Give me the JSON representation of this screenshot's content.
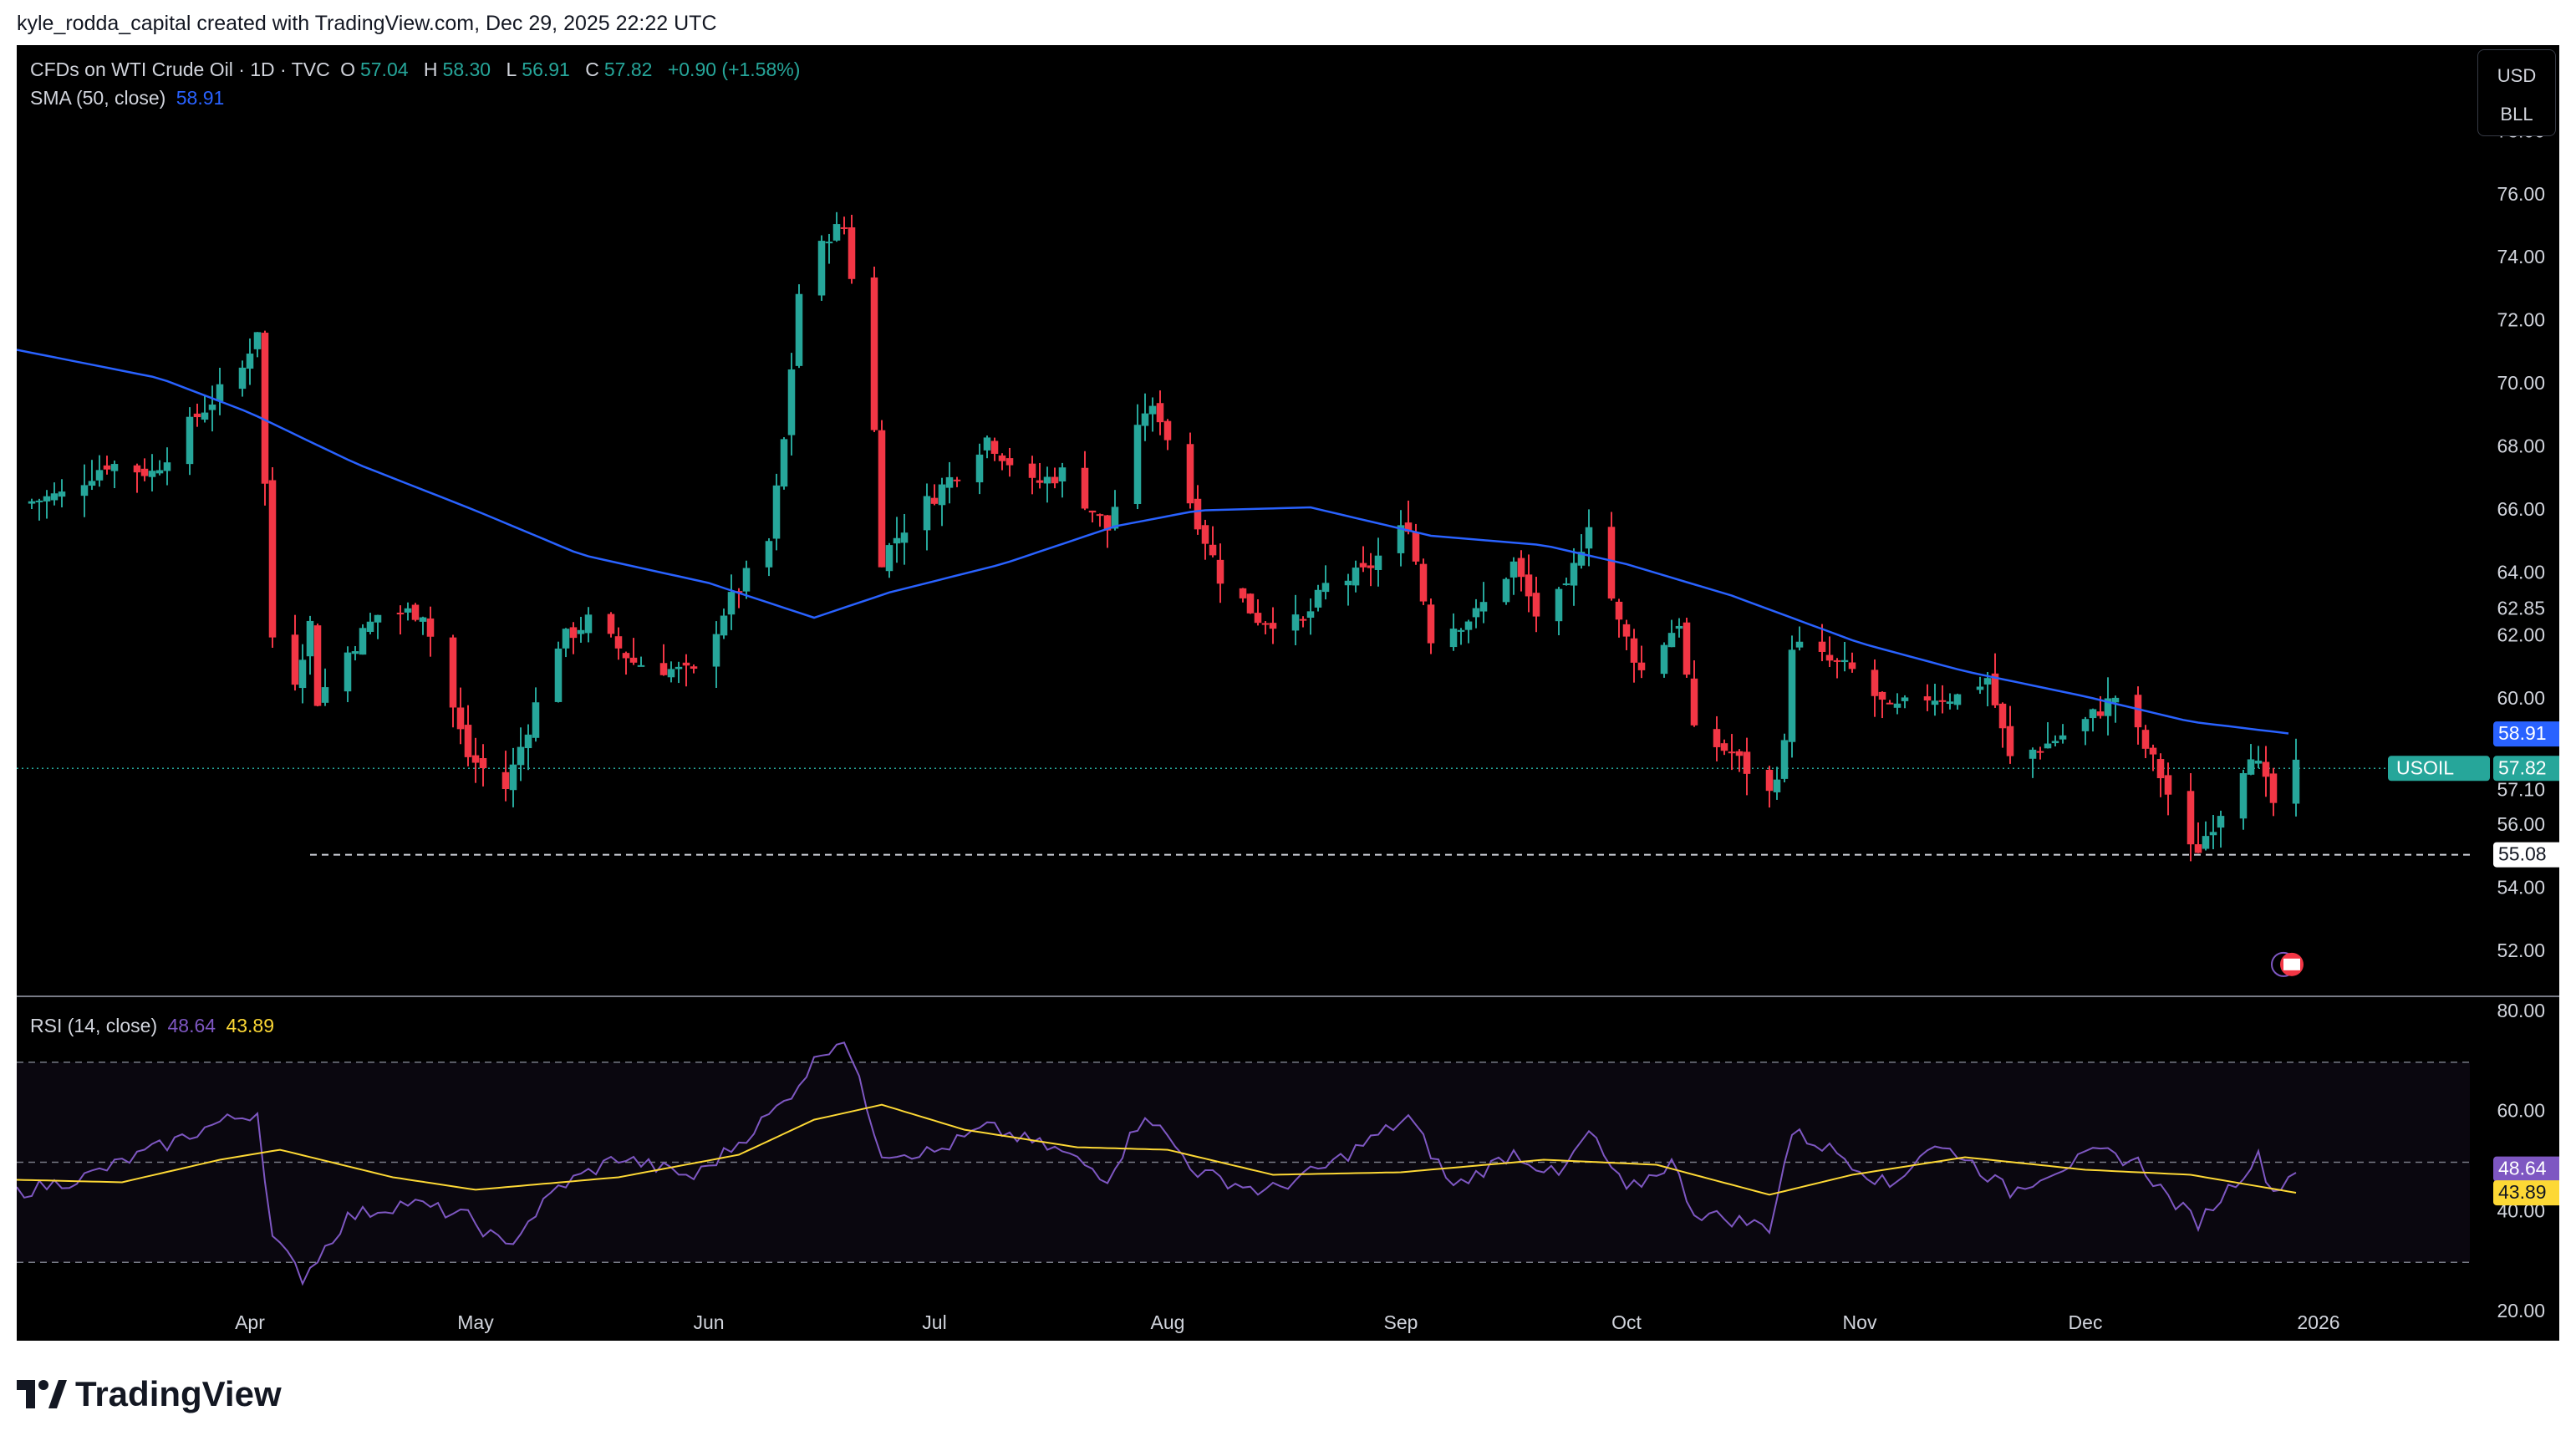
{
  "credit": "kyle_rodda_capital created with TradingView.com, Dec 29, 2025 22:22 UTC",
  "legend": {
    "title": "CFDs on WTI Crude Oil · 1D · TVC",
    "o_label": "O",
    "o_val": "57.04",
    "h_label": "H",
    "h_val": "58.30",
    "l_label": "L",
    "l_val": "56.91",
    "c_label": "C",
    "c_val": "57.82",
    "change": "+0.90 (+1.58%)",
    "sma_label": "SMA (50, close)",
    "sma_val": "58.91",
    "rsi_label": "RSI (14, close)",
    "rsi_val": "48.64",
    "rsi_ma_val": "43.89"
  },
  "units": {
    "currency": "USD",
    "unit": "BLL"
  },
  "footer_logo": "TradingView",
  "colors": {
    "up": "#26a69a",
    "down": "#f23645",
    "sma": "#2962ff",
    "rsi": "#7e57c2",
    "rsi_ma": "#fdd835"
  },
  "chart_data": [
    {
      "type": "candlestick",
      "symbol": "USOIL",
      "price_axis_ticks": [
        52.0,
        54.0,
        56.0,
        58.0,
        60.0,
        62.0,
        64.0,
        66.0,
        68.0,
        70.0,
        72.0,
        74.0,
        76.0,
        78.0
      ],
      "price_axis_labels": [
        "52.00",
        "54.00",
        "56.00",
        "60.00",
        "62.00",
        "64.00",
        "66.00",
        "68.00",
        "70.00",
        "72.00",
        "74.00",
        "76.00",
        "78.00"
      ],
      "ylim": [
        50.8,
        80.5
      ],
      "x_labels": [
        "Apr",
        "May",
        "Jun",
        "Jul",
        "Aug",
        "Sep",
        "Oct",
        "Nov",
        "Dec",
        "2026"
      ],
      "x_label_dates": [
        "2025-04-01",
        "2025-05-01",
        "2025-06-01",
        "2025-07-01",
        "2025-08-01",
        "2025-09-01",
        "2025-10-01",
        "2025-11-01",
        "2025-12-01",
        "2026-01-01"
      ],
      "xlim": [
        "2025-03-01",
        "2026-01-20"
      ],
      "tags": {
        "sma": "58.91",
        "last_symbol": "USOIL",
        "last_price": "57.82",
        "level_a": "62.85",
        "level_b": "57.10",
        "level_c": "55.08"
      },
      "support_line": 55.08,
      "close_waypoints": [
        [
          "2025-03-01",
          66.2
        ],
        [
          "2025-03-07",
          66.5
        ],
        [
          "2025-03-13",
          67.5
        ],
        [
          "2025-03-19",
          67.2
        ],
        [
          "2025-03-25",
          69.0
        ],
        [
          "2025-03-31",
          70.5
        ],
        [
          "2025-04-02",
          71.8
        ],
        [
          "2025-04-03",
          66.8
        ],
        [
          "2025-04-04",
          62.0
        ],
        [
          "2025-04-07",
          60.7
        ],
        [
          "2025-04-09",
          62.4
        ],
        [
          "2025-04-10",
          60.0
        ],
        [
          "2025-04-14",
          61.5
        ],
        [
          "2025-04-18",
          62.7
        ],
        [
          "2025-04-24",
          62.8
        ],
        [
          "2025-04-30",
          58.2
        ],
        [
          "2025-05-05",
          57.2
        ],
        [
          "2025-05-07",
          58.5
        ],
        [
          "2025-05-12",
          61.8
        ],
        [
          "2025-05-16",
          62.5
        ],
        [
          "2025-05-22",
          61.2
        ],
        [
          "2025-05-30",
          60.8
        ],
        [
          "2025-06-03",
          62.8
        ],
        [
          "2025-06-09",
          65.0
        ],
        [
          "2025-06-11",
          68.2
        ],
        [
          "2025-06-13",
          72.9
        ],
        [
          "2025-06-17",
          74.8
        ],
        [
          "2025-06-19",
          75.0
        ],
        [
          "2025-06-20",
          73.5
        ],
        [
          "2025-06-23",
          68.5
        ],
        [
          "2025-06-24",
          64.5
        ],
        [
          "2025-06-27",
          65.5
        ],
        [
          "2025-07-03",
          67.0
        ],
        [
          "2025-07-08",
          68.3
        ],
        [
          "2025-07-14",
          66.8
        ],
        [
          "2025-07-18",
          67.2
        ],
        [
          "2025-07-24",
          65.4
        ],
        [
          "2025-07-29",
          69.2
        ],
        [
          "2025-07-31",
          69.0
        ],
        [
          "2025-08-04",
          66.3
        ],
        [
          "2025-08-08",
          63.9
        ],
        [
          "2025-08-13",
          62.6
        ],
        [
          "2025-08-19",
          62.4
        ],
        [
          "2025-08-22",
          63.6
        ],
        [
          "2025-08-27",
          64.0
        ],
        [
          "2025-09-02",
          65.6
        ],
        [
          "2025-09-05",
          62.0
        ],
        [
          "2025-09-11",
          62.7
        ],
        [
          "2025-09-16",
          64.3
        ],
        [
          "2025-09-19",
          62.7
        ],
        [
          "2025-09-23",
          63.4
        ],
        [
          "2025-09-26",
          65.7
        ],
        [
          "2025-09-30",
          62.4
        ],
        [
          "2025-10-03",
          60.9
        ],
        [
          "2025-10-08",
          62.5
        ],
        [
          "2025-10-10",
          58.9
        ],
        [
          "2025-10-15",
          58.3
        ],
        [
          "2025-10-20",
          57.0
        ],
        [
          "2025-10-22",
          58.5
        ],
        [
          "2025-10-23",
          61.8
        ],
        [
          "2025-10-27",
          61.3
        ],
        [
          "2025-10-31",
          60.9
        ],
        [
          "2025-11-05",
          59.6
        ],
        [
          "2025-11-10",
          60.1
        ],
        [
          "2025-11-14",
          60.1
        ],
        [
          "2025-11-18",
          60.7
        ],
        [
          "2025-11-21",
          58.1
        ],
        [
          "2025-11-26",
          58.6
        ],
        [
          "2025-12-01",
          59.3
        ],
        [
          "2025-12-05",
          60.1
        ],
        [
          "2025-12-08",
          58.9
        ],
        [
          "2025-12-11",
          57.6
        ],
        [
          "2025-12-15",
          55.2
        ],
        [
          "2025-12-16",
          55.3
        ],
        [
          "2025-12-19",
          56.5
        ],
        [
          "2025-12-23",
          58.4
        ],
        [
          "2025-12-26",
          56.7
        ],
        [
          "2025-12-29",
          57.8
        ]
      ],
      "sma_waypoints": [
        [
          "2025-03-01",
          71.1
        ],
        [
          "2025-03-20",
          70.2
        ],
        [
          "2025-04-01",
          69.1
        ],
        [
          "2025-04-15",
          67.5
        ],
        [
          "2025-05-01",
          66.0
        ],
        [
          "2025-05-15",
          64.6
        ],
        [
          "2025-06-01",
          63.7
        ],
        [
          "2025-06-15",
          62.6
        ],
        [
          "2025-06-25",
          63.4
        ],
        [
          "2025-07-10",
          64.3
        ],
        [
          "2025-07-25",
          65.5
        ],
        [
          "2025-08-05",
          66.0
        ],
        [
          "2025-08-20",
          66.1
        ],
        [
          "2025-09-05",
          65.2
        ],
        [
          "2025-09-20",
          64.9
        ],
        [
          "2025-10-01",
          64.3
        ],
        [
          "2025-10-15",
          63.3
        ],
        [
          "2025-11-01",
          61.8
        ],
        [
          "2025-11-15",
          60.9
        ],
        [
          "2025-12-01",
          60.1
        ],
        [
          "2025-12-15",
          59.3
        ],
        [
          "2025-12-29",
          58.9
        ]
      ]
    },
    {
      "type": "line",
      "title": "RSI (14, close)",
      "ylim": [
        16,
        82
      ],
      "y_ticks": [
        20.0,
        40.0,
        60.0,
        80.0
      ],
      "y_tick_labels": [
        "20.00",
        "40.00",
        "60.00",
        "80.00"
      ],
      "bands": [
        30,
        50,
        70
      ],
      "tags": {
        "rsi": "48.64",
        "rsi_ma": "43.89"
      },
      "series": [
        {
          "values_waypoints": [
            [
              "2025-03-01",
              44
            ],
            [
              "2025-03-10",
              47
            ],
            [
              "2025-03-20",
              53
            ],
            [
              "2025-03-28",
              58
            ],
            [
              "2025-04-02",
              60
            ],
            [
              "2025-04-04",
              35
            ],
            [
              "2025-04-08",
              27
            ],
            [
              "2025-04-14",
              39
            ],
            [
              "2025-04-22",
              42
            ],
            [
              "2025-04-30",
              39
            ],
            [
              "2025-05-05",
              33
            ],
            [
              "2025-05-12",
              45
            ],
            [
              "2025-05-20",
              51
            ],
            [
              "2025-05-30",
              47
            ],
            [
              "2025-06-05",
              54
            ],
            [
              "2025-06-11",
              62
            ],
            [
              "2025-06-16",
              72
            ],
            [
              "2025-06-19",
              75
            ],
            [
              "2025-06-24",
              52
            ],
            [
              "2025-07-01",
              52
            ],
            [
              "2025-07-08",
              57
            ],
            [
              "2025-07-18",
              52
            ],
            [
              "2025-07-24",
              47
            ],
            [
              "2025-07-29",
              60
            ],
            [
              "2025-08-05",
              48
            ],
            [
              "2025-08-14",
              44
            ],
            [
              "2025-08-22",
              49
            ],
            [
              "2025-09-02",
              59
            ],
            [
              "2025-09-08",
              45
            ],
            [
              "2025-09-16",
              52
            ],
            [
              "2025-09-22",
              47
            ],
            [
              "2025-09-26",
              56
            ],
            [
              "2025-10-01",
              44
            ],
            [
              "2025-10-07",
              50
            ],
            [
              "2025-10-10",
              40
            ],
            [
              "2025-10-17",
              38
            ],
            [
              "2025-10-20",
              37
            ],
            [
              "2025-10-23",
              56
            ],
            [
              "2025-10-29",
              52
            ],
            [
              "2025-11-05",
              45
            ],
            [
              "2025-11-10",
              53
            ],
            [
              "2025-11-14",
              52
            ],
            [
              "2025-11-21",
              44
            ],
            [
              "2025-11-26",
              48
            ],
            [
              "2025-12-03",
              52
            ],
            [
              "2025-12-08",
              50
            ],
            [
              "2025-12-12",
              43
            ],
            [
              "2025-12-16",
              38
            ],
            [
              "2025-12-22",
              48
            ],
            [
              "2025-12-24",
              51
            ],
            [
              "2025-12-26",
              44
            ],
            [
              "2025-12-29",
              48.6
            ]
          ]
        },
        {
          "values_waypoints": [
            [
              "2025-03-01",
              46.5
            ],
            [
              "2025-03-15",
              46.0
            ],
            [
              "2025-03-28",
              50.5
            ],
            [
              "2025-04-05",
              52.5
            ],
            [
              "2025-04-20",
              47.0
            ],
            [
              "2025-05-01",
              44.5
            ],
            [
              "2025-05-20",
              47.0
            ],
            [
              "2025-06-05",
              51.5
            ],
            [
              "2025-06-15",
              58.5
            ],
            [
              "2025-06-24",
              61.5
            ],
            [
              "2025-07-05",
              56.5
            ],
            [
              "2025-07-20",
              53.0
            ],
            [
              "2025-08-01",
              52.5
            ],
            [
              "2025-08-15",
              47.5
            ],
            [
              "2025-09-01",
              48.0
            ],
            [
              "2025-09-20",
              50.5
            ],
            [
              "2025-10-05",
              49.5
            ],
            [
              "2025-10-20",
              43.5
            ],
            [
              "2025-10-31",
              47.5
            ],
            [
              "2025-11-15",
              51.0
            ],
            [
              "2025-12-01",
              48.5
            ],
            [
              "2025-12-15",
              47.5
            ],
            [
              "2025-12-29",
              43.9
            ]
          ]
        }
      ]
    }
  ]
}
